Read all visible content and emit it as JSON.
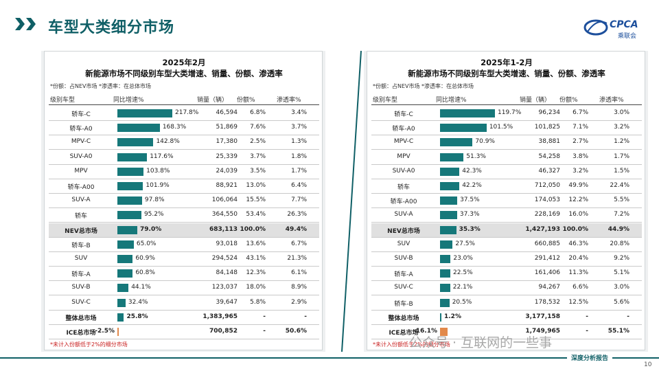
{
  "page": {
    "title": "车型大类细分市场",
    "logo_text": "CPCA",
    "logo_sub": "乘联会",
    "footer_label": "深度分析报告",
    "page_number": "10",
    "watermark": "公众号 · 互联网的一些事"
  },
  "colors": {
    "accent": "#0f5f66",
    "bar": "#16787a",
    "negative_bar": "#e2894b",
    "highlight_row": "#e0e0e0"
  },
  "chart_data": [
    {
      "type": "table",
      "title": "2025年2月",
      "subtitle": "新能源市场不同级别车型大类增速、销量、份额、渗透率",
      "note": "*份额：占NEV市场    *渗透率：在总体市场",
      "columns": [
        "级别车型",
        "同比增速%",
        "销量（辆）",
        "份额%",
        "渗透率%"
      ],
      "max_growth": 217.8,
      "footnote": "*未计入份额低于2%的细分市场",
      "rows": [
        {
          "name": "轿车-C",
          "growth": 217.8,
          "growth_label": "217.8%",
          "sales": "46,594",
          "share": "6.8%",
          "pen": "3.4%"
        },
        {
          "name": "轿车-A0",
          "growth": 168.3,
          "growth_label": "168.3%",
          "sales": "51,869",
          "share": "7.6%",
          "pen": "3.7%"
        },
        {
          "name": "MPV-C",
          "growth": 142.8,
          "growth_label": "142.8%",
          "sales": "17,380",
          "share": "2.5%",
          "pen": "1.3%"
        },
        {
          "name": "SUV-A0",
          "growth": 117.6,
          "growth_label": "117.6%",
          "sales": "25,339",
          "share": "3.7%",
          "pen": "1.8%"
        },
        {
          "name": "MPV",
          "growth": 103.8,
          "growth_label": "103.8%",
          "sales": "24,039",
          "share": "3.5%",
          "pen": "1.7%"
        },
        {
          "name": "轿车-A00",
          "growth": 101.9,
          "growth_label": "101.9%",
          "sales": "88,921",
          "share": "13.0%",
          "pen": "6.4%"
        },
        {
          "name": "SUV-A",
          "growth": 97.8,
          "growth_label": "97.8%",
          "sales": "106,064",
          "share": "15.5%",
          "pen": "7.7%"
        },
        {
          "name": "轿车",
          "growth": 95.2,
          "growth_label": "95.2%",
          "sales": "364,550",
          "share": "53.4%",
          "pen": "26.3%"
        },
        {
          "name": "NEV总市场",
          "growth": 79.0,
          "growth_label": "79.0%",
          "sales": "683,113",
          "share": "100.0%",
          "pen": "49.4%",
          "highlight": true,
          "bold": true
        },
        {
          "name": "轿车-B",
          "growth": 65.0,
          "growth_label": "65.0%",
          "sales": "93,018",
          "share": "13.6%",
          "pen": "6.7%"
        },
        {
          "name": "SUV",
          "growth": 60.9,
          "growth_label": "60.9%",
          "sales": "294,524",
          "share": "43.1%",
          "pen": "21.3%"
        },
        {
          "name": "轿车-A",
          "growth": 60.8,
          "growth_label": "60.8%",
          "sales": "84,148",
          "share": "12.3%",
          "pen": "6.1%"
        },
        {
          "name": "SUV-B",
          "growth": 44.1,
          "growth_label": "44.1%",
          "sales": "123,037",
          "share": "18.0%",
          "pen": "8.9%"
        },
        {
          "name": "SUV-C",
          "growth": 32.4,
          "growth_label": "32.4%",
          "sales": "39,647",
          "share": "5.8%",
          "pen": "2.9%"
        },
        {
          "name": "整体总市场",
          "growth": 25.8,
          "growth_label": "25.8%",
          "sales": "1,383,965",
          "share": "-",
          "pen": "-",
          "bold": true
        },
        {
          "name": "ICE总市场",
          "growth": -2.5,
          "growth_label": "-2.5%",
          "sales": "700,852",
          "share": "-",
          "pen": "50.6%",
          "bold": true
        }
      ]
    },
    {
      "type": "table",
      "title": "2025年1-2月",
      "subtitle": "新能源市场不同级别车型大类增速、销量、份额、渗透率",
      "note": "*份额：占NEV市场    *渗透率：在总体市场",
      "columns": [
        "级别车型",
        "同比增速%",
        "销量（辆）",
        "份额%",
        "渗透率%"
      ],
      "max_growth": 119.7,
      "footnote": "*未计入份额低于2%的细分市场",
      "rows": [
        {
          "name": "轿车-C",
          "growth": 119.7,
          "growth_label": "119.7%",
          "sales": "96,234",
          "share": "6.7%",
          "pen": "3.0%"
        },
        {
          "name": "轿车-A0",
          "growth": 101.5,
          "growth_label": "101.5%",
          "sales": "101,825",
          "share": "7.1%",
          "pen": "3.2%"
        },
        {
          "name": "MPV-C",
          "growth": 70.9,
          "growth_label": "70.9%",
          "sales": "38,881",
          "share": "2.7%",
          "pen": "1.2%"
        },
        {
          "name": "MPV",
          "growth": 51.3,
          "growth_label": "51.3%",
          "sales": "54,258",
          "share": "3.8%",
          "pen": "1.7%"
        },
        {
          "name": "SUV-A0",
          "growth": 42.3,
          "growth_label": "42.3%",
          "sales": "46,327",
          "share": "3.2%",
          "pen": "1.5%"
        },
        {
          "name": "轿车",
          "growth": 42.2,
          "growth_label": "42.2%",
          "sales": "712,050",
          "share": "49.9%",
          "pen": "22.4%"
        },
        {
          "name": "轿车-A00",
          "growth": 37.5,
          "growth_label": "37.5%",
          "sales": "174,053",
          "share": "12.2%",
          "pen": "5.5%"
        },
        {
          "name": "SUV-A",
          "growth": 37.3,
          "growth_label": "37.3%",
          "sales": "228,169",
          "share": "16.0%",
          "pen": "7.2%"
        },
        {
          "name": "NEV总市场",
          "growth": 35.3,
          "growth_label": "35.3%",
          "sales": "1,427,193",
          "share": "100.0%",
          "pen": "44.9%",
          "highlight": true,
          "bold": true
        },
        {
          "name": "SUV",
          "growth": 27.5,
          "growth_label": "27.5%",
          "sales": "660,885",
          "share": "46.3%",
          "pen": "20.8%"
        },
        {
          "name": "SUV-B",
          "growth": 23.0,
          "growth_label": "23.0%",
          "sales": "291,412",
          "share": "20.4%",
          "pen": "9.2%"
        },
        {
          "name": "轿车-A",
          "growth": 22.5,
          "growth_label": "22.5%",
          "sales": "161,406",
          "share": "11.3%",
          "pen": "5.1%"
        },
        {
          "name": "SUV-C",
          "growth": 22.1,
          "growth_label": "22.1%",
          "sales": "94,267",
          "share": "6.6%",
          "pen": "3.0%"
        },
        {
          "name": "轿车-B",
          "growth": 20.5,
          "growth_label": "20.5%",
          "sales": "178,532",
          "share": "12.5%",
          "pen": "5.6%"
        },
        {
          "name": "整体总市场",
          "growth": 1.2,
          "growth_label": "1.2%",
          "sales": "3,177,158",
          "share": "-",
          "pen": "-",
          "bold": true
        },
        {
          "name": "ICE总市场",
          "growth": -16.1,
          "growth_label": "-16.1%",
          "sales": "1,749,965",
          "share": "-",
          "pen": "55.1%",
          "bold": true
        }
      ]
    }
  ]
}
